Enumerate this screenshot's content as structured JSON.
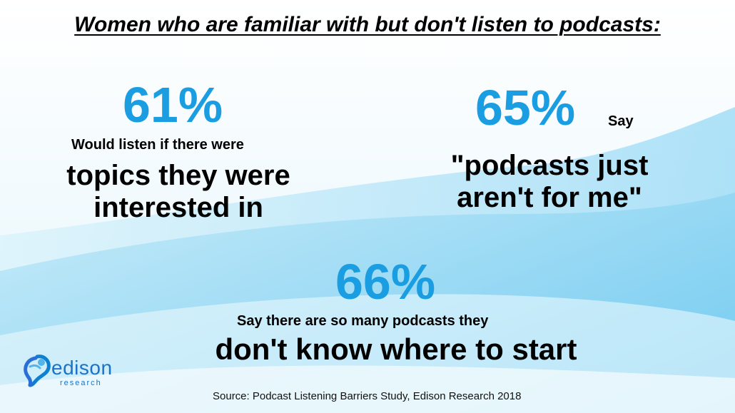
{
  "title": "Women who are familiar with but don't listen to podcasts:",
  "stats": [
    {
      "percent": "61%",
      "lead": "Would listen if there were",
      "emphasis_line1": "topics they were",
      "emphasis_line2": "interested in"
    },
    {
      "percent": "65%",
      "lead": "Say",
      "emphasis_line1": "\"podcasts just",
      "emphasis_line2": "aren't for me\""
    },
    {
      "percent": "66%",
      "lead": "Say there are so many podcasts they",
      "emphasis_line1": "don't know where to start"
    }
  ],
  "source": "Source: Podcast Listening Barriers Study, Edison Research 2018",
  "logo": {
    "name": "edison",
    "subtitle": "research",
    "icon": "edison-bulb-logo-icon"
  },
  "colors": {
    "accent": "#1b9de2",
    "text": "#000000",
    "background_wave": "#6cc8ef"
  }
}
